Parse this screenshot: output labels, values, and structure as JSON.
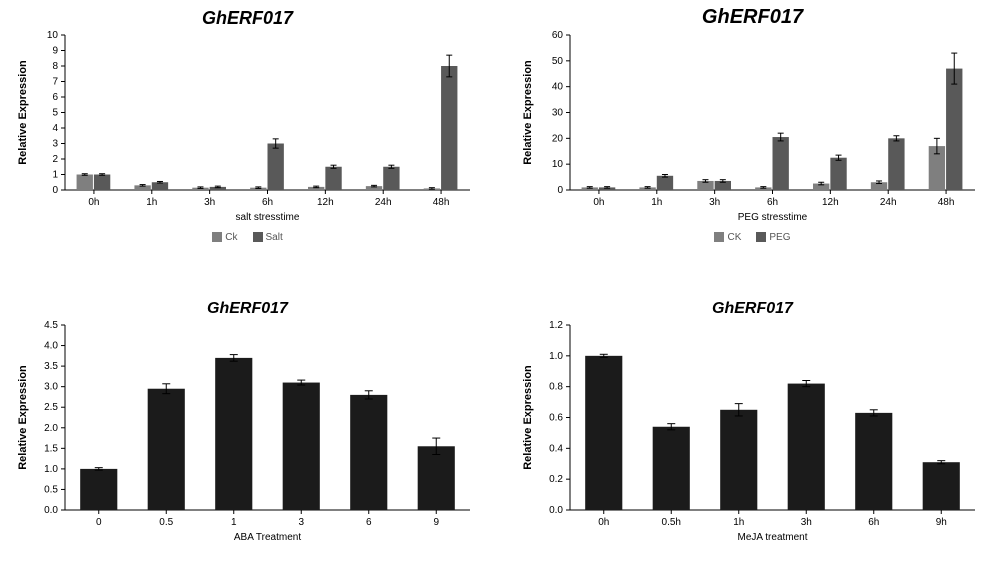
{
  "colors": {
    "axis": "#000000",
    "bar_dark": "#1b1b1b",
    "bar_gray1": "#7f7f7f",
    "bar_gray2": "#595959",
    "bg": "#ffffff",
    "error_bar": "#000000"
  },
  "chart1": {
    "title": "GhERF017",
    "title_fontsize": 18,
    "title_style": "italic bold",
    "type": "grouped-bar",
    "ylabel": "Relative Expression",
    "xlabel": "salt stresstime",
    "categories": [
      "0h",
      "1h",
      "3h",
      "6h",
      "12h",
      "24h",
      "48h"
    ],
    "series": [
      {
        "name": "Ck",
        "color": "#7f7f7f",
        "values": [
          1.0,
          0.3,
          0.15,
          0.15,
          0.2,
          0.25,
          0.1
        ],
        "err": [
          0.05,
          0.05,
          0.05,
          0.05,
          0.05,
          0.05,
          0.05
        ]
      },
      {
        "name": "Salt",
        "color": "#595959",
        "values": [
          1.0,
          0.5,
          0.2,
          3.0,
          1.5,
          1.5,
          8.0
        ],
        "err": [
          0.05,
          0.05,
          0.05,
          0.3,
          0.1,
          0.1,
          0.7
        ]
      }
    ],
    "ylim": [
      0,
      10
    ],
    "ytick_step": 1,
    "legend": [
      "Ck",
      "Salt"
    ],
    "bar_group_width": 0.6
  },
  "chart2": {
    "title": "GhERF017",
    "title_fontsize": 20,
    "title_style": "italic bold",
    "type": "grouped-bar",
    "ylabel": "Relative Expression",
    "xlabel": "PEG stresstime",
    "categories": [
      "0h",
      "1h",
      "3h",
      "6h",
      "12h",
      "24h",
      "48h"
    ],
    "series": [
      {
        "name": "CK",
        "color": "#7f7f7f",
        "values": [
          1,
          1,
          3.5,
          1,
          2.5,
          3,
          17
        ],
        "err": [
          0.3,
          0.3,
          0.5,
          0.3,
          0.5,
          0.5,
          3
        ]
      },
      {
        "name": "PEG",
        "color": "#595959",
        "values": [
          1,
          5.5,
          3.5,
          20.5,
          12.5,
          20,
          47
        ],
        "err": [
          0.3,
          0.5,
          0.5,
          1.5,
          1,
          1,
          6
        ]
      }
    ],
    "ylim": [
      0,
      60
    ],
    "ytick_step": 10,
    "legend": [
      "CK",
      "PEG"
    ],
    "bar_group_width": 0.6
  },
  "chart3": {
    "title": "GhERF017",
    "title_fontsize": 16,
    "title_style": "italic bold",
    "type": "bar",
    "ylabel": "Relative Expression",
    "xlabel": "ABA  Treatment",
    "categories": [
      "0",
      "0.5",
      "1",
      "3",
      "6",
      "9"
    ],
    "values": [
      1.0,
      2.95,
      3.7,
      3.1,
      2.8,
      1.55
    ],
    "err": [
      0.03,
      0.12,
      0.08,
      0.06,
      0.1,
      0.2
    ],
    "bar_color": "#1b1b1b",
    "ylim": [
      0,
      4.5
    ],
    "ytick_step": 0.5,
    "bar_width": 0.55
  },
  "chart4": {
    "title": "GhERF017",
    "title_fontsize": 16,
    "title_style": "italic bold",
    "type": "bar",
    "ylabel": "Relative  Expression",
    "xlabel": "MeJA treatment",
    "categories": [
      "0h",
      "0.5h",
      "1h",
      "3h",
      "6h",
      "9h"
    ],
    "values": [
      1.0,
      0.54,
      0.65,
      0.82,
      0.63,
      0.31
    ],
    "err": [
      0.01,
      0.02,
      0.04,
      0.02,
      0.02,
      0.01
    ],
    "bar_color": "#1b1b1b",
    "ylim": [
      0,
      1.2
    ],
    "ytick_step": 0.2,
    "bar_width": 0.55
  }
}
